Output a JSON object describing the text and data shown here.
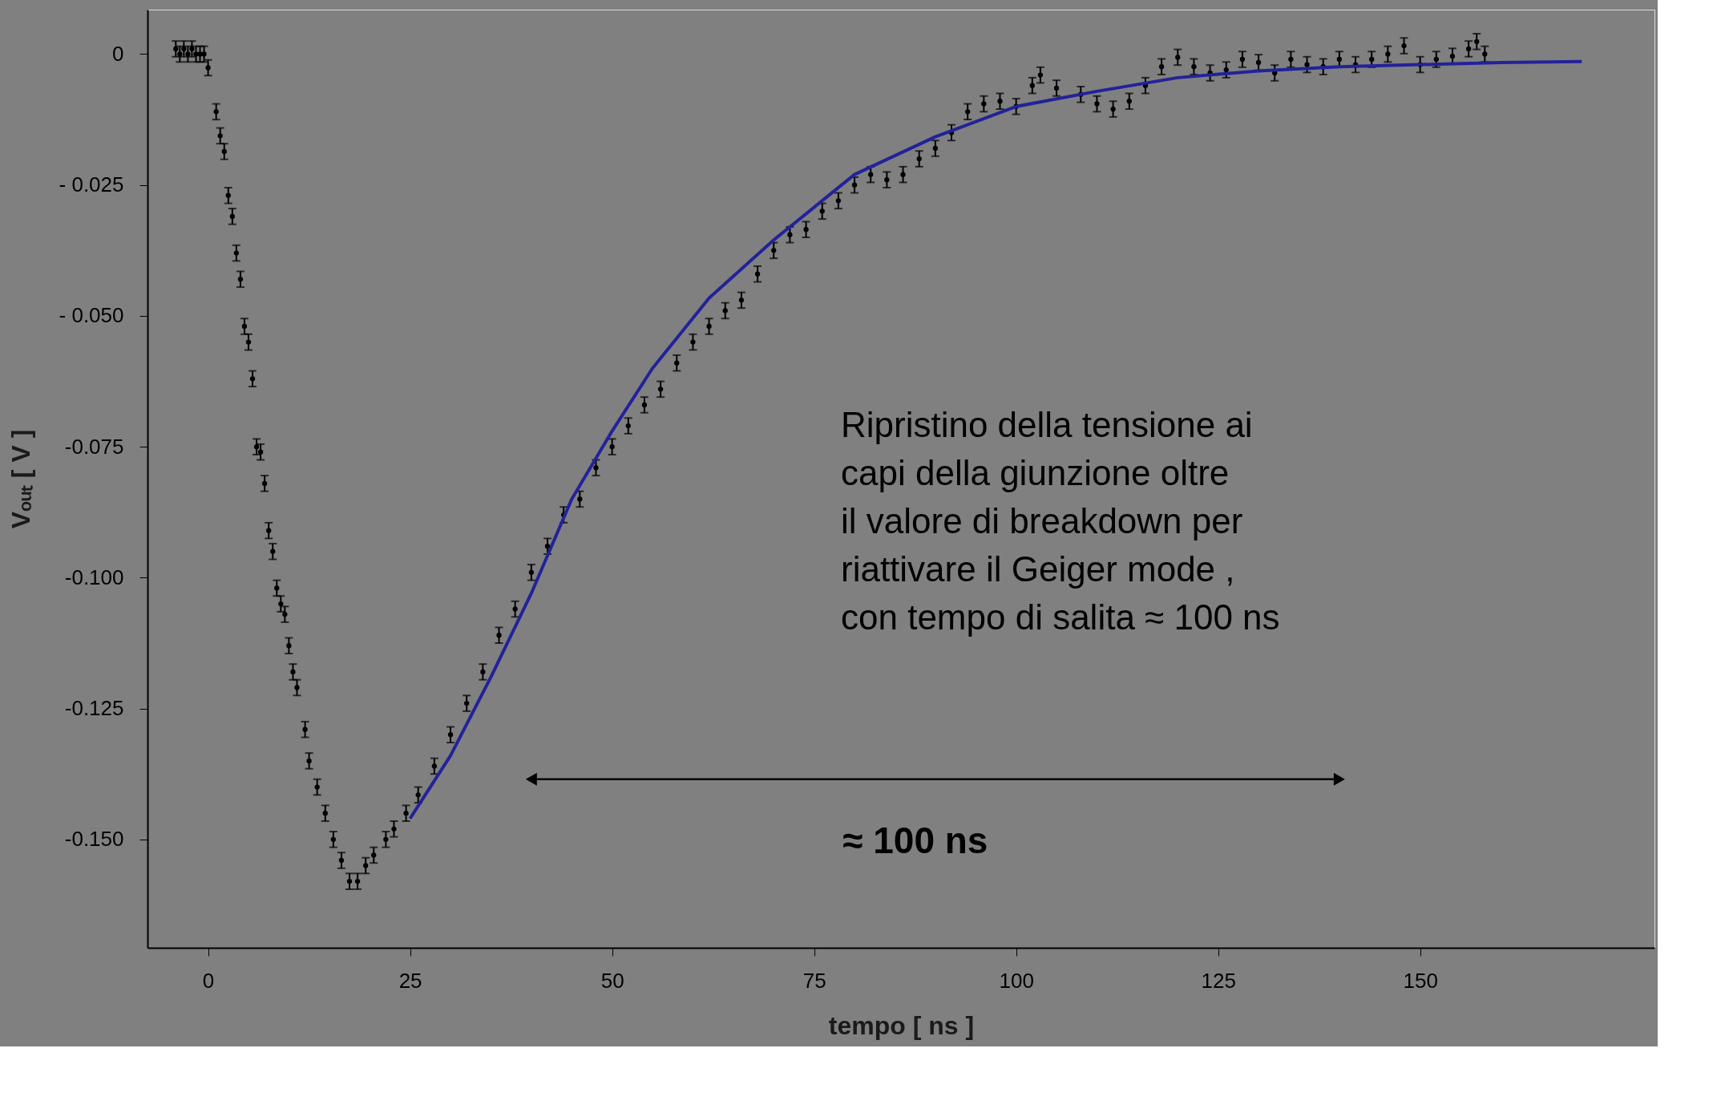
{
  "chart_data": {
    "type": "scatter",
    "xlabel": "tempo  [ ns ]",
    "ylabel": "Vₒᵤₜ  [ V ]",
    "xlim": [
      -7.5,
      179
    ],
    "ylim": [
      -0.1707,
      0.0085
    ],
    "xticks": [
      0,
      25,
      50,
      75,
      100,
      125,
      150
    ],
    "yticks": [
      {
        "value": 0,
        "label": "0"
      },
      {
        "value": -0.025,
        "label": "- 0.025"
      },
      {
        "value": -0.05,
        "label": "- 0.050"
      },
      {
        "value": -0.075,
        "label": "-0.075"
      },
      {
        "value": -0.1,
        "label": "-0.100"
      },
      {
        "value": -0.125,
        "label": "-0.125"
      },
      {
        "value": -0.15,
        "label": "-0.150"
      }
    ],
    "grid": false,
    "series": [
      {
        "color": "#000000",
        "marker": "circle",
        "x": [
          -4,
          -3.5,
          -3,
          -2.5,
          -2,
          -1.5,
          -1,
          -0.5,
          0,
          1,
          1.5,
          2,
          2.5,
          3,
          3.5,
          4,
          4.5,
          5,
          5.5,
          6,
          6.5,
          7,
          7.5,
          8,
          8.5,
          9,
          9.5,
          10,
          10.5,
          11,
          12,
          12.5,
          13.5,
          14.5,
          15.5,
          16.5,
          17.5,
          18.5,
          19.5,
          20.5,
          22,
          23,
          24.5,
          26,
          28,
          30,
          32,
          34,
          36,
          38,
          40,
          42,
          44,
          46,
          48,
          50,
          52,
          54,
          56,
          58,
          60,
          62,
          64,
          66,
          68,
          70,
          72,
          74,
          76,
          78,
          80,
          82,
          84,
          86,
          88,
          90,
          92,
          94,
          96,
          98,
          100,
          102,
          103,
          105,
          108,
          110,
          112,
          114,
          116,
          118,
          120,
          122,
          124,
          126,
          128,
          130,
          132,
          134,
          136,
          138,
          140,
          142,
          144,
          146,
          148,
          150,
          152,
          154,
          156,
          157,
          158
        ],
        "values": [
          0.001,
          0.0,
          0.001,
          0.0,
          0.001,
          0.0,
          0.0,
          0.0,
          -0.0026,
          -0.011,
          -0.0156,
          -0.0186,
          -0.027,
          -0.031,
          -0.038,
          -0.043,
          -0.052,
          -0.055,
          -0.062,
          -0.075,
          -0.076,
          -0.082,
          -0.091,
          -0.095,
          -0.102,
          -0.105,
          -0.107,
          -0.113,
          -0.118,
          -0.121,
          -0.129,
          -0.135,
          -0.14,
          -0.145,
          -0.15,
          -0.154,
          -0.158,
          -0.158,
          -0.155,
          -0.153,
          -0.15,
          -0.148,
          -0.145,
          -0.1415,
          -0.136,
          -0.13,
          -0.124,
          -0.118,
          -0.111,
          -0.106,
          -0.099,
          -0.094,
          -0.088,
          -0.085,
          -0.079,
          -0.075,
          -0.071,
          -0.067,
          -0.064,
          -0.059,
          -0.055,
          -0.052,
          -0.049,
          -0.047,
          -0.042,
          -0.0375,
          -0.0345,
          -0.0335,
          -0.03,
          -0.028,
          -0.025,
          -0.023,
          -0.024,
          -0.023,
          -0.02,
          -0.018,
          -0.015,
          -0.011,
          -0.0095,
          -0.009,
          -0.01,
          -0.006,
          -0.004,
          -0.0065,
          -0.0077,
          -0.0095,
          -0.0105,
          -0.009,
          -0.006,
          -0.0024,
          -0.0006,
          -0.0024,
          -0.0036,
          -0.003,
          -0.001,
          -0.0016,
          -0.0036,
          -0.001,
          -0.002,
          -0.0024,
          -0.001,
          -0.002,
          -0.001,
          0.0,
          0.0016,
          -0.002,
          -0.001,
          -0.0004,
          0.001,
          0.0024,
          0.0
        ],
        "errors": [
          0.0015,
          0.0015,
          0.0015,
          0.0015,
          0.0015,
          0.0015,
          0.0015,
          0.0015,
          0.0015,
          0.0015,
          0.0015,
          0.0015,
          0.0015,
          0.0015,
          0.0015,
          0.0015,
          0.0015,
          0.0015,
          0.0015,
          0.0015,
          0.0015,
          0.0015,
          0.0015,
          0.0015,
          0.0015,
          0.0015,
          0.0015,
          0.0015,
          0.0015,
          0.0015,
          0.0015,
          0.0015,
          0.0015,
          0.0015,
          0.0015,
          0.0015,
          0.0015,
          0.0015,
          0.0015,
          0.0015,
          0.0015,
          0.0015,
          0.0015,
          0.0015,
          0.0015,
          0.0015,
          0.0015,
          0.0015,
          0.0015,
          0.0015,
          0.0015,
          0.0015,
          0.0015,
          0.0015,
          0.0015,
          0.0015,
          0.0015,
          0.0015,
          0.0015,
          0.0015,
          0.0015,
          0.0015,
          0.0015,
          0.0015,
          0.0015,
          0.0015,
          0.0015,
          0.0015,
          0.0015,
          0.0015,
          0.0015,
          0.0015,
          0.0015,
          0.0015,
          0.0015,
          0.0015,
          0.0015,
          0.0015,
          0.0015,
          0.0015,
          0.0015,
          0.0015,
          0.0015,
          0.0015,
          0.0015,
          0.0015,
          0.0015,
          0.0015,
          0.0015,
          0.0015,
          0.0015,
          0.0015,
          0.0015,
          0.0015,
          0.0015,
          0.0015,
          0.0015,
          0.0015,
          0.0015,
          0.0015,
          0.0015,
          0.0015,
          0.0015,
          0.0015,
          0.0015,
          0.0015,
          0.0015,
          0.0015,
          0.0015,
          0.0015,
          0.0015
        ]
      },
      {
        "type": "line",
        "color": "#22229a",
        "marker": "none",
        "line_style": "solid",
        "x": [
          25,
          30,
          35,
          40,
          45,
          50,
          55,
          62,
          70,
          80,
          90,
          100,
          110,
          120,
          130,
          140,
          150,
          160,
          170
        ],
        "values": [
          -0.146,
          -0.134,
          -0.119,
          -0.103,
          -0.085,
          -0.072,
          -0.06,
          -0.0466,
          -0.0355,
          -0.023,
          -0.0158,
          -0.01,
          -0.0071,
          -0.0045,
          -0.0032,
          -0.0024,
          -0.002,
          -0.0016,
          -0.0014
        ]
      },
      {
        "type": "line",
        "color": "#000000",
        "marker": "triangle",
        "line_style": "solid",
        "x": [
          40,
          140
        ],
        "values": [
          -0.1385,
          -0.1385
        ]
      }
    ],
    "annotations": [
      "≈ 100 ns",
      "Ripristino della tensione ai\ncapi della giunzione oltre\nil valore di breakdown per\nriattivare il Geiger mode ,\ncon tempo di salita  ≈ 100 ns"
    ]
  }
}
